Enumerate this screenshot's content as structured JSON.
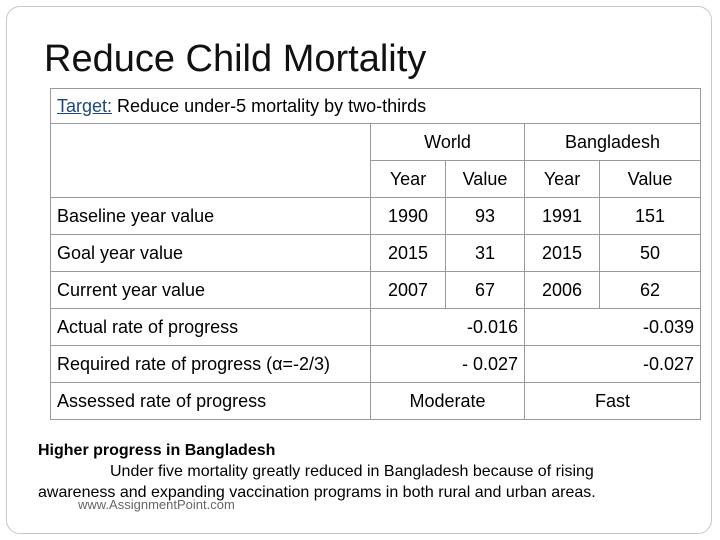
{
  "title": "Reduce Child Mortality",
  "target": {
    "label": "Target:",
    "text": " Reduce under-5 mortality by two-thirds"
  },
  "columns": {
    "world": "World",
    "bangladesh": "Bangladesh",
    "year": "Year",
    "value": "Value"
  },
  "rows": [
    {
      "label": "Baseline year value",
      "world_year": "1990",
      "world_value": "93",
      "bd_year": "1991",
      "bd_value": "151"
    },
    {
      "label": "Goal year value",
      "world_year": "2015",
      "world_value": "31",
      "bd_year": "2015",
      "bd_value": "50"
    },
    {
      "label": "Current year value",
      "world_year": "2007",
      "world_value": "67",
      "bd_year": "2006",
      "bd_value": "62"
    }
  ],
  "rate_rows": [
    {
      "label": "Actual rate of progress",
      "world": "-0.016",
      "bd": "-0.039"
    },
    {
      "label": "Required rate of progress (α=-2/3)",
      "world": "- 0.027",
      "bd": "-0.027"
    },
    {
      "label": "Assessed rate of progress",
      "world": "Moderate",
      "bd": "Fast"
    }
  ],
  "summary": {
    "heading": "Higher progress in Bangladesh",
    "line1": "Under five mortality greatly reduced in Bangladesh because of rising",
    "line2": "awareness and expanding vaccination programs in both rural and urban areas."
  },
  "footer": "www.AssignmentPoint.com"
}
